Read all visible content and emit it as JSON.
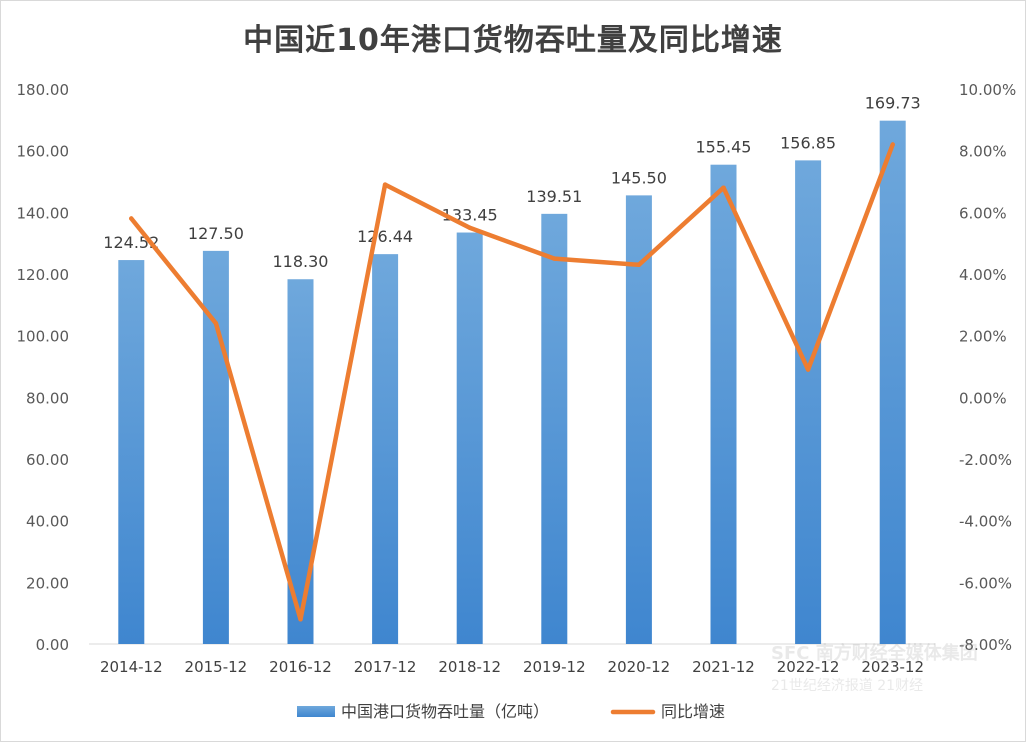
{
  "chart_data": {
    "type": "bar",
    "title": "中国近10年港口货物吞吐量及同比增速",
    "categories": [
      "2014-12",
      "2015-12",
      "2016-12",
      "2017-12",
      "2018-12",
      "2019-12",
      "2020-12",
      "2021-12",
      "2022-12",
      "2023-12"
    ],
    "series": [
      {
        "name": "中国港口货物吞吐量（亿吨）",
        "type": "bar",
        "axis": "left",
        "color": "#5b9bd5",
        "values": [
          124.52,
          127.5,
          118.3,
          126.44,
          133.45,
          139.51,
          145.5,
          155.45,
          156.85,
          169.73
        ],
        "labels": [
          "124.52",
          "127.50",
          "118.30",
          "126.44",
          "133.45",
          "139.51",
          "145.50",
          "155.45",
          "156.85",
          "169.73"
        ]
      },
      {
        "name": "同比增速",
        "type": "line",
        "axis": "right",
        "color": "#ed7d31",
        "values": [
          5.8,
          2.4,
          -7.2,
          6.9,
          5.5,
          4.5,
          4.3,
          6.8,
          0.9,
          8.2
        ]
      }
    ],
    "y_left": {
      "min": 0,
      "max": 180,
      "ticks": [
        "0.00",
        "20.00",
        "40.00",
        "60.00",
        "80.00",
        "100.00",
        "120.00",
        "140.00",
        "160.00",
        "180.00"
      ]
    },
    "y_right": {
      "min": -8,
      "max": 10,
      "ticks": [
        "-8.00%",
        "-6.00%",
        "-4.00%",
        "-2.00%",
        "0.00%",
        "2.00%",
        "4.00%",
        "6.00%",
        "8.00%",
        "10.00%"
      ]
    },
    "grid": false,
    "legend_position": "bottom"
  },
  "watermark": {
    "line1": "SFC 南方财经全媒体集团",
    "line2": "21世纪经济报道  21财经"
  }
}
